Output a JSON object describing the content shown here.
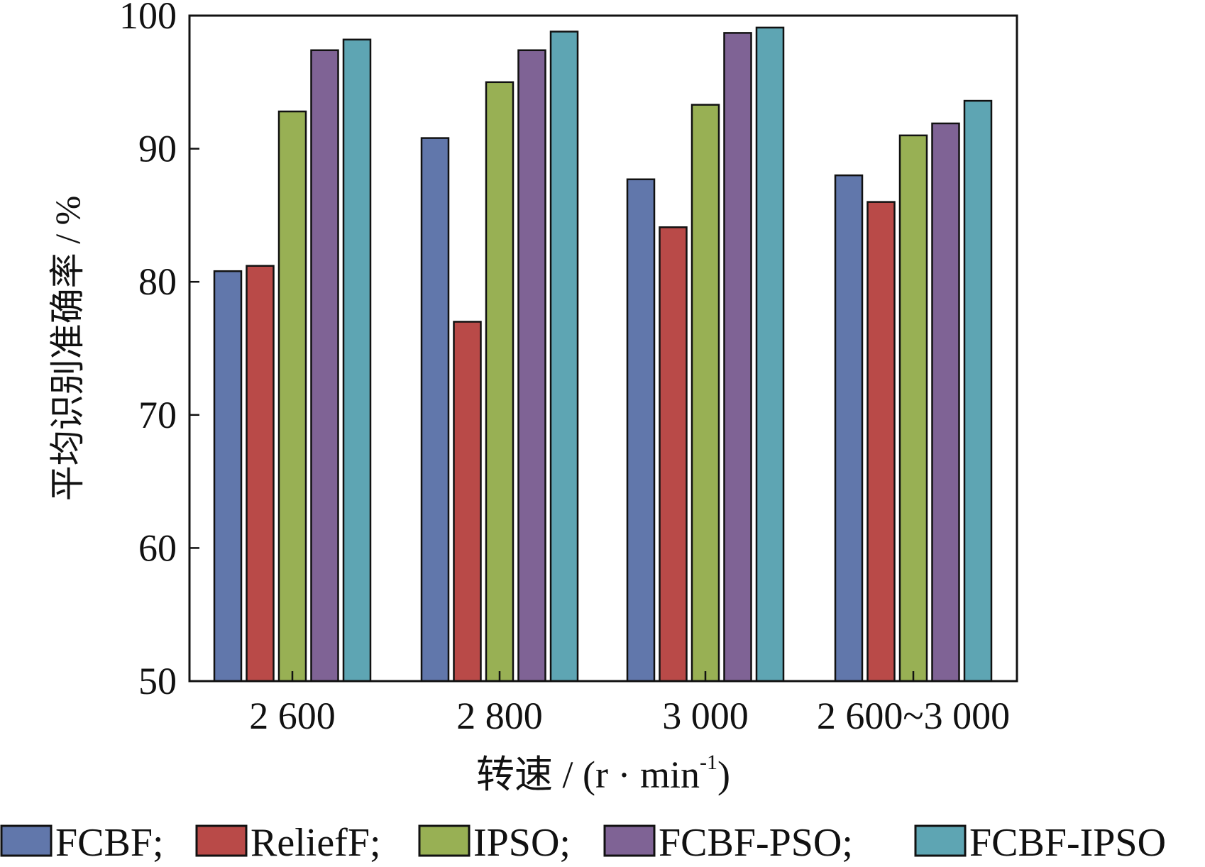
{
  "chart_data": {
    "type": "bar",
    "title": "",
    "xlabel": "转速 / (r · min⁻¹)",
    "xlabel_main": "转速 / (r · min",
    "xlabel_sup": "-1",
    "xlabel_close": ")",
    "ylabel": "平均识别准确率 / %",
    "ylim": [
      50,
      100
    ],
    "yticks": [
      50,
      60,
      70,
      80,
      90,
      100
    ],
    "grid": false,
    "legend_position": "bottom",
    "categories": [
      "2 600",
      "2 800",
      "3 000",
      "2 600~3 000"
    ],
    "series": [
      {
        "name": "FCBF",
        "legend_label": "FCBF;",
        "color": "#6177ab",
        "values": [
          80.8,
          90.8,
          87.7,
          88.0
        ]
      },
      {
        "name": "ReliefF",
        "legend_label": "ReliefF;",
        "color": "#b94a48",
        "values": [
          81.2,
          77.0,
          84.1,
          86.0
        ]
      },
      {
        "name": "IPSO",
        "legend_label": "IPSO;",
        "color": "#98b054",
        "values": [
          92.8,
          95.0,
          93.3,
          91.0
        ]
      },
      {
        "name": "FCBF-PSO",
        "legend_label": "FCBF-PSO;",
        "color": "#7f6395",
        "values": [
          97.4,
          97.4,
          98.7,
          91.9
        ]
      },
      {
        "name": "FCBF-IPSO",
        "legend_label": "FCBF-IPSO",
        "color": "#5ea5b3",
        "values": [
          98.2,
          98.8,
          99.1,
          93.6
        ]
      }
    ]
  }
}
